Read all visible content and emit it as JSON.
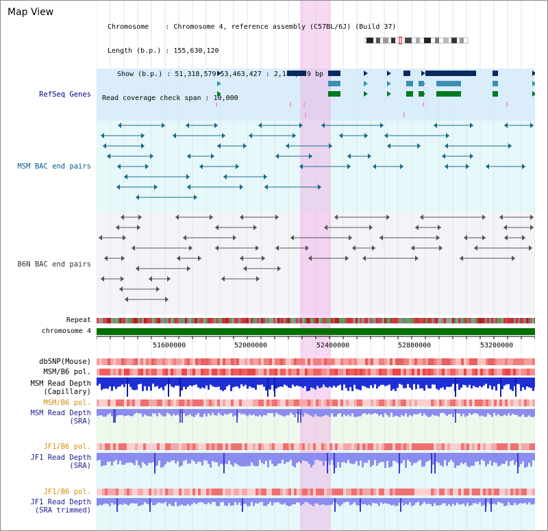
{
  "window": {
    "title": "Map View"
  },
  "info": {
    "chromosome_label": "Chromosome",
    "chromosome_value": "Chromosome 4, reference assembly (C57BL/6J) (Build 37)",
    "length_label": "Length (b.p.)",
    "length_value": "155,630,120",
    "show_label": "Show (b.p.)",
    "show_value": "51,318,579-53,463,427 : 2,144,849 bp",
    "coverage_label": "Read coverage check span",
    "coverage_value": "10,000"
  },
  "tracks": {
    "refseq": "RefSeq Genes",
    "msm_bac": "MSM BAC end pairs",
    "b6n_bac": "B6N BAC end pairs",
    "repeat": "Repeat",
    "chromosome": "chromosome 4",
    "dbsnp": "dbSNP(Mouse)",
    "msm_b6_pol_1": "MSM/B6 pol.",
    "msm_read_depth_cap_1": "MSM Read Depth",
    "msm_read_depth_cap_2": "(Capillary)",
    "msm_b6_pol_2": "MSM/B6 pol.",
    "msm_read_depth_sra_1": "MSM Read Depth",
    "msm_read_depth_sra_2": "(SRA)",
    "jf1_b6_pol_1": "JF1/B6 pol.",
    "jf1_read_depth_sra_1": "JF1 Read Depth",
    "jf1_read_depth_sra_2": "(SRA)",
    "jf1_b6_pol_2": "JF1/B6 pol.",
    "jf1_read_depth_trim_1": "JF1 Read Depth",
    "jf1_read_depth_trim_2": "(SRA trimmed)"
  },
  "axis": {
    "ticks": [
      "51600000",
      "52000000",
      "52400000",
      "52800000",
      "53200000"
    ]
  },
  "colors": {
    "highlight": "#f0aae6",
    "refseq_bg": "#d9eefa",
    "msm_bg": "#e6f8fa",
    "b6n_bg": "#f4f4f8",
    "chromosome": "#007000",
    "navy_feature": "#0a2a5e",
    "teal_feature": "#3b8fb0",
    "green_feature": "#007a20",
    "bac_msm": "#1a6b8a",
    "bac_b6n": "#555555",
    "depth_dark": "#1e2fd6",
    "depth_light": "#8a8cf0"
  }
}
